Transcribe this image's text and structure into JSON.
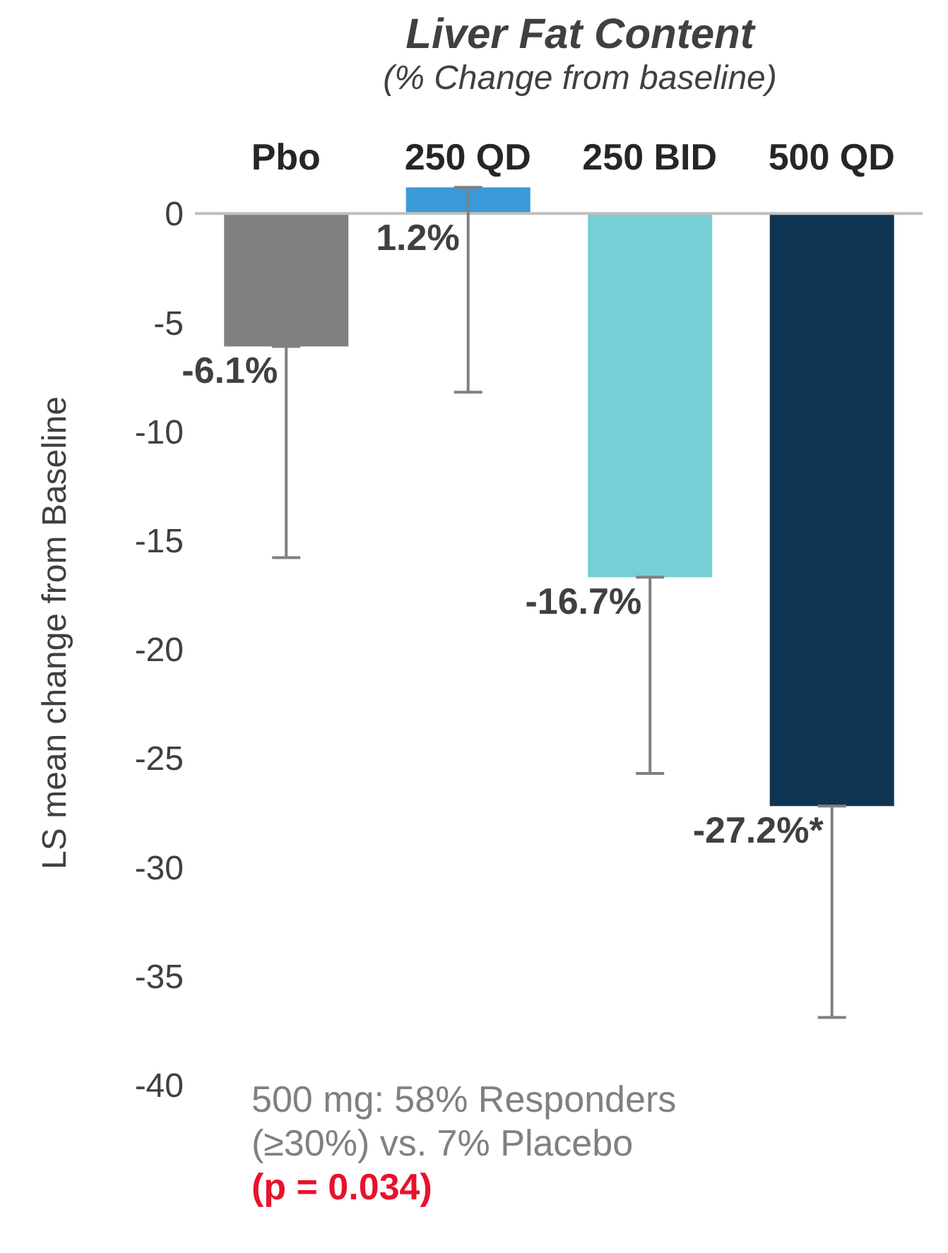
{
  "chart_data": {
    "type": "bar",
    "title": "Liver Fat Content",
    "subtitle": "(% Change from baseline)",
    "ylabel": "LS mean change from Baseline",
    "categories": [
      "Pbo",
      "250 QD",
      "250 BID",
      "500 QD"
    ],
    "values": [
      -6.1,
      1.2,
      -16.7,
      -27.2
    ],
    "colors": [
      "#808080",
      "#3a9ad9",
      "#76cfd4",
      "#0f3554"
    ],
    "errors": [
      [
        -15.8,
        -6.1
      ],
      [
        -8.2,
        1.2
      ],
      [
        -25.7,
        -16.7
      ],
      [
        -36.9,
        -27.2
      ]
    ],
    "value_labels": [
      "-6.1%",
      "1.2%",
      "-16.7%",
      "-27.2%*"
    ],
    "ylim": [
      -40,
      1.5
    ],
    "yticks": [
      0,
      -5,
      -10,
      -15,
      -20,
      -25,
      -30,
      -35,
      -40
    ],
    "annotations": [
      "500 mg: 58% Responders (≥30%)  vs. 7% Placebo",
      "(p = 0.034)"
    ],
    "grid": false,
    "legend": false
  }
}
